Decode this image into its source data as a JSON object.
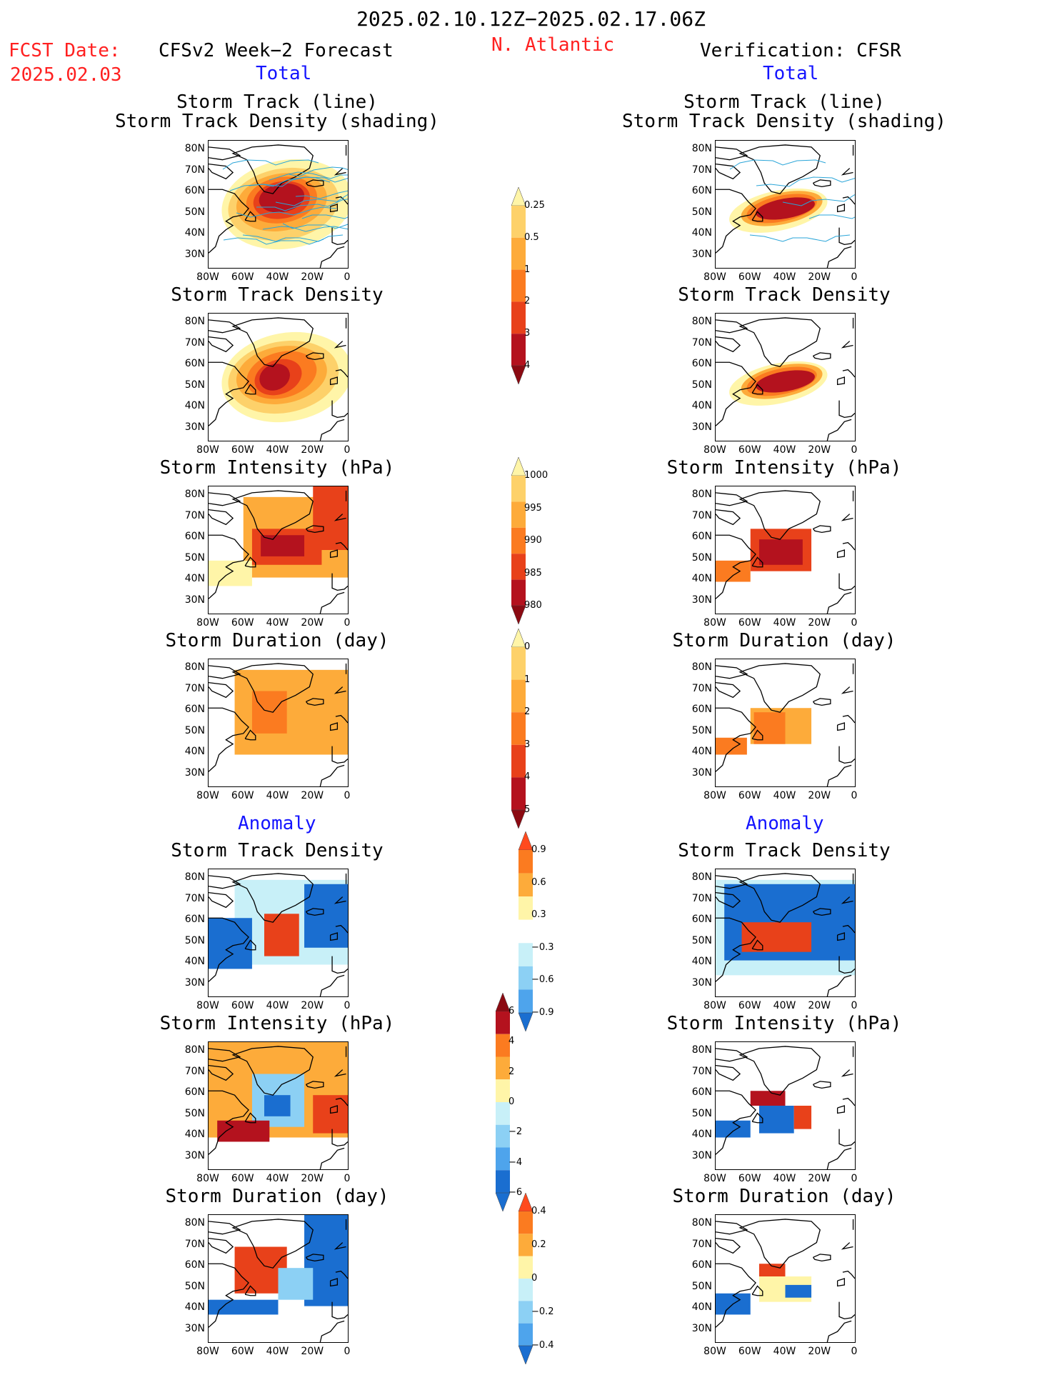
{
  "header": {
    "period": "2025.02.10.12Z−2025.02.17.06Z",
    "fcst_label": "FCST Date:",
    "fcst_date": "2025.02.03",
    "model": "CFSv2 Week−2 Forecast",
    "region": "N. Atlantic",
    "verification": "Verification: CFSR",
    "total_label": "Total",
    "anomaly_label": "Anomaly"
  },
  "panel_titles": {
    "track_line": "Storm Track (line)",
    "track_shading": "Storm Track Density (shading)",
    "density": "Storm Track Density",
    "intensity": "Storm Intensity (hPa)",
    "duration": "Storm Duration (day)"
  },
  "axes": {
    "lat_ticks": [
      "80N",
      "70N",
      "60N",
      "50N",
      "40N",
      "30N"
    ],
    "lon_ticks": [
      "80W",
      "60W",
      "40W",
      "20W",
      "0"
    ]
  },
  "colorbars": {
    "density_total": [
      "0.25",
      "0.5",
      "1",
      "2",
      "3",
      "4"
    ],
    "intensity_total": [
      "1000",
      "995",
      "990",
      "985",
      "980"
    ],
    "duration_total": [
      "0",
      "1",
      "2",
      "3",
      "4",
      "5"
    ],
    "density_anom": [
      "0.9",
      "0.6",
      "0.3",
      "−0.3",
      "−0.6",
      "−0.9"
    ],
    "intensity_anom": [
      "6",
      "4",
      "2",
      "0",
      "−2",
      "−4",
      "−6"
    ],
    "duration_anom": [
      "0.4",
      "0.2",
      "0",
      "−0.2",
      "−0.4"
    ]
  },
  "colors": {
    "title_red": "#ff2020",
    "label_blue": "#1414ff",
    "warm": [
      "#fff5a8",
      "#fdd16a",
      "#fdab3a",
      "#fb7b20",
      "#e8411a",
      "#b4121e"
    ],
    "cool": [
      "#c8f0f8",
      "#8cd0f4",
      "#4ea4ec",
      "#1a6ed0"
    ],
    "track_line": "#2aa5d8"
  }
}
